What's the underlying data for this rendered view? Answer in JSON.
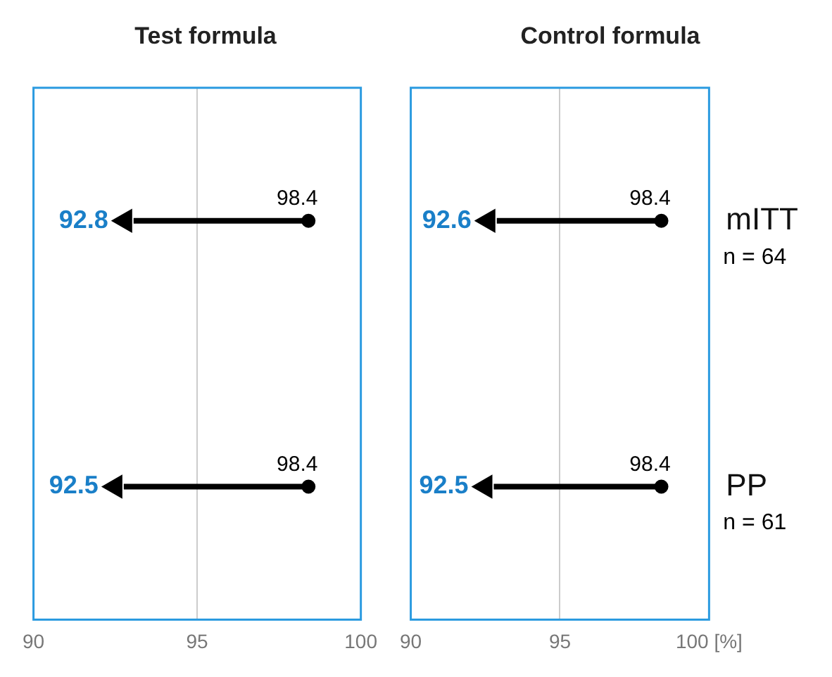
{
  "chart_data": [
    {
      "type": "scatter",
      "title": "Test formula",
      "orientation": "horizontal",
      "categories": [
        null,
        null
      ],
      "tick_labels": "x",
      "series": [
        {
          "color": "#000000",
          "values": [
            98.4,
            98.4
          ],
          "marker": "circle"
        },
        {
          "color": "#000000",
          "values": [
            92.8,
            92.5
          ],
          "marker": "triangle"
        }
      ],
      "data_labels": true,
      "xlim": [
        90,
        100
      ],
      "xticks": [
        90,
        95,
        100
      ],
      "grid": "x"
    },
    {
      "type": "scatter",
      "title": "Control formula",
      "orientation": "horizontal",
      "categories": [
        "mITT",
        "PP"
      ],
      "series": [
        {
          "color": "#000000",
          "values": [
            98.4,
            98.4
          ],
          "marker": "circle"
        },
        {
          "color": "#000000",
          "values": [
            92.6,
            92.5
          ],
          "marker": "triangle"
        }
      ],
      "data_labels": true,
      "xlim": [
        90,
        100
      ],
      "xticks": [
        90,
        95,
        {
          "value": 100,
          "label": "100 [%]"
        }
      ],
      "grid": "x",
      "annotations": [
        "n = 64",
        "n = 61"
      ]
    }
  ]
}
